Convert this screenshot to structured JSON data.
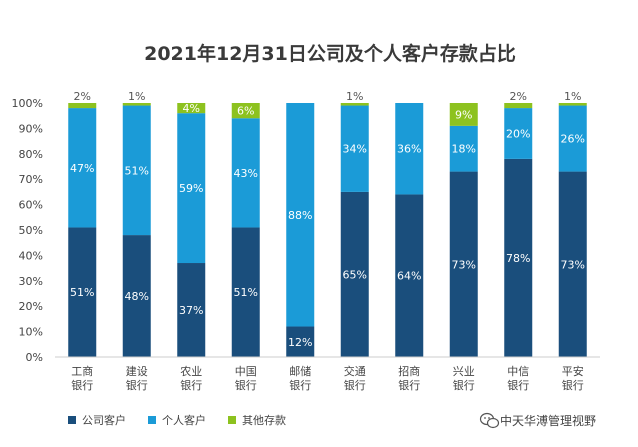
{
  "chart_data": {
    "type": "bar",
    "stacked": true,
    "title": "2021年12月31日公司及个人客户存款占比",
    "xlabel": "",
    "ylabel": "",
    "ylim": [
      0,
      100
    ],
    "ytick_values": [
      0,
      10,
      20,
      30,
      40,
      50,
      60,
      70,
      80,
      90,
      100
    ],
    "ytick_labels": [
      "0%",
      "10%",
      "20%",
      "30%",
      "40%",
      "50%",
      "60%",
      "70%",
      "80%",
      "90%",
      "100%"
    ],
    "grid": false,
    "legend_position": "bottom-left",
    "categories": [
      [
        "工商",
        "银行"
      ],
      [
        "建设",
        "银行"
      ],
      [
        "农业",
        "银行"
      ],
      [
        "中国",
        "银行"
      ],
      [
        "邮储",
        "银行"
      ],
      [
        "交通",
        "银行"
      ],
      [
        "招商",
        "银行"
      ],
      [
        "兴业",
        "银行"
      ],
      [
        "中信",
        "银行"
      ],
      [
        "平安",
        "银行"
      ]
    ],
    "series": [
      {
        "name": "公司客户",
        "color": "#1a4e7c",
        "label_color": "#ffffff",
        "values": [
          51,
          48,
          37,
          51,
          12,
          65,
          64,
          73,
          78,
          73
        ],
        "labels": [
          "51%",
          "48%",
          "37%",
          "51%",
          "12%",
          "65%",
          "64%",
          "73%",
          "78%",
          "73%"
        ]
      },
      {
        "name": "个人客户",
        "color": "#1b9bd7",
        "label_color": "#ffffff",
        "values": [
          47,
          51,
          59,
          43,
          88,
          34,
          36,
          18,
          20,
          26
        ],
        "labels": [
          "47%",
          "51%",
          "59%",
          "43%",
          "88%",
          "34%",
          "36%",
          "18%",
          "20%",
          "26%"
        ]
      },
      {
        "name": "其他存款",
        "color": "#8dc21f",
        "label_color": "#ffffff",
        "values": [
          2,
          1,
          4,
          6,
          0,
          1,
          0,
          9,
          2,
          1
        ],
        "labels": [
          "2%",
          "1%",
          "4%",
          "6%",
          "",
          "1%",
          "",
          "9%",
          "2%",
          "1%"
        ]
      }
    ]
  },
  "watermark": {
    "text": "中天华溥管理视野",
    "icon": "wechat-icon"
  }
}
